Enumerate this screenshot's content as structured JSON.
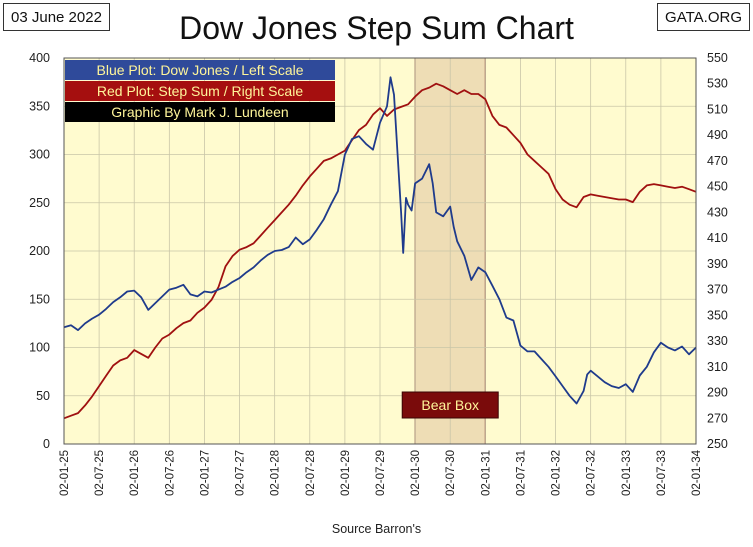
{
  "header": {
    "date": "03 June 2022",
    "source_org": "GATA.ORG"
  },
  "colors": {
    "plot_bg": "#FFFBCF",
    "blue": "#1F3B8C",
    "red": "#A01010",
    "bear_box_fill": "#EEDDB5",
    "bear_box_label_bg": "#7A0B0B",
    "legend_blue_bg": "#2F4A9A",
    "legend_red_bg": "#A50F0F",
    "legend_black_bg": "#000000",
    "legend_text": "#FFF59A"
  },
  "chart_data": {
    "type": "line",
    "title": "Dow Jones Step Sum Chart",
    "xlabel": "Source Barron's",
    "ylabel_left": "",
    "ylabel_right": "",
    "ylim_left": [
      0,
      400
    ],
    "ylim_right": [
      250,
      550
    ],
    "yticks_left": [
      "0",
      "50",
      "100",
      "150",
      "200",
      "250",
      "300",
      "350",
      "400"
    ],
    "yticks_right": [
      "250",
      "270",
      "290",
      "310",
      "330",
      "350",
      "370",
      "390",
      "410",
      "430",
      "450",
      "470",
      "490",
      "510",
      "530",
      "550"
    ],
    "x_tick_labels": [
      "02-01-25",
      "02-07-25",
      "02-01-26",
      "02-07-26",
      "02-01-27",
      "02-07-27",
      "02-01-28",
      "02-07-28",
      "02-01-29",
      "02-07-29",
      "02-01-30",
      "02-07-30",
      "02-01-31",
      "02-07-31",
      "02-01-32",
      "02-07-32",
      "02-01-33",
      "02-07-33",
      "02-01-34"
    ],
    "x_range_years": [
      1925.0,
      1934.0
    ],
    "legend": [
      {
        "text": "Blue Plot: Dow Jones / Left Scale",
        "color": "blue"
      },
      {
        "text": "Red Plot: Step Sum / Right Scale",
        "color": "red"
      },
      {
        "text": "Graphic By Mark J. Lundeen",
        "color": "black"
      }
    ],
    "legend_position": "top-left",
    "bear_box": {
      "label": "Bear Box",
      "x_start": 1930.0,
      "x_end": 1931.0
    },
    "series": [
      {
        "name": "Dow Jones",
        "axis": "left",
        "color": "blue",
        "x": [
          1925.0,
          1925.1,
          1925.2,
          1925.3,
          1925.4,
          1925.5,
          1925.6,
          1925.7,
          1925.8,
          1925.9,
          1926.0,
          1926.1,
          1926.2,
          1926.3,
          1926.4,
          1926.5,
          1926.6,
          1926.7,
          1926.8,
          1926.9,
          1927.0,
          1927.1,
          1927.2,
          1927.3,
          1927.4,
          1927.5,
          1927.6,
          1927.7,
          1927.8,
          1927.9,
          1928.0,
          1928.1,
          1928.2,
          1928.3,
          1928.4,
          1928.5,
          1928.6,
          1928.7,
          1928.8,
          1928.9,
          1929.0,
          1929.1,
          1929.2,
          1929.3,
          1929.4,
          1929.5,
          1929.6,
          1929.65,
          1929.7,
          1929.75,
          1929.8,
          1929.83,
          1929.87,
          1929.9,
          1929.95,
          1930.0,
          1930.1,
          1930.2,
          1930.25,
          1930.3,
          1930.4,
          1930.5,
          1930.55,
          1930.6,
          1930.7,
          1930.8,
          1930.9,
          1931.0,
          1931.1,
          1931.2,
          1931.3,
          1931.4,
          1931.5,
          1931.6,
          1931.7,
          1931.8,
          1931.9,
          1932.0,
          1932.1,
          1932.2,
          1932.3,
          1932.4,
          1932.45,
          1932.5,
          1932.6,
          1932.7,
          1932.8,
          1932.9,
          1933.0,
          1933.1,
          1933.2,
          1933.3,
          1933.4,
          1933.5,
          1933.6,
          1933.7,
          1933.8,
          1933.9,
          1934.0
        ],
        "values": [
          121,
          123,
          118,
          125,
          130,
          134,
          140,
          147,
          152,
          158,
          159,
          152,
          139,
          146,
          153,
          160,
          162,
          165,
          155,
          153,
          158,
          157,
          160,
          163,
          168,
          172,
          178,
          183,
          190,
          196,
          200,
          201,
          204,
          214,
          207,
          212,
          222,
          233,
          248,
          262,
          300,
          316,
          319,
          311,
          305,
          333,
          350,
          380,
          362,
          300,
          240,
          198,
          255,
          248,
          242,
          270,
          275,
          290,
          270,
          240,
          236,
          246,
          225,
          210,
          195,
          170,
          183,
          178,
          164,
          150,
          131,
          128,
          102,
          96,
          96,
          88,
          80,
          70,
          60,
          50,
          42,
          55,
          72,
          76,
          70,
          64,
          60,
          58,
          62,
          54,
          71,
          80,
          95,
          105,
          100,
          97,
          101,
          93,
          100
        ]
      },
      {
        "name": "Step Sum",
        "axis": "right",
        "color": "red",
        "x": [
          1925.0,
          1925.1,
          1925.2,
          1925.3,
          1925.4,
          1925.5,
          1925.6,
          1925.7,
          1925.8,
          1925.9,
          1926.0,
          1926.1,
          1926.2,
          1926.3,
          1926.4,
          1926.5,
          1926.6,
          1926.7,
          1926.8,
          1926.9,
          1927.0,
          1927.1,
          1927.2,
          1927.3,
          1927.4,
          1927.5,
          1927.6,
          1927.7,
          1927.8,
          1927.9,
          1928.0,
          1928.1,
          1928.2,
          1928.3,
          1928.4,
          1928.5,
          1928.6,
          1928.7,
          1928.8,
          1928.9,
          1929.0,
          1929.1,
          1929.2,
          1929.3,
          1929.4,
          1929.5,
          1929.6,
          1929.7,
          1929.8,
          1929.9,
          1930.0,
          1930.1,
          1930.2,
          1930.3,
          1930.4,
          1930.5,
          1930.6,
          1930.7,
          1930.8,
          1930.9,
          1931.0,
          1931.1,
          1931.2,
          1931.3,
          1931.4,
          1931.5,
          1931.6,
          1931.7,
          1931.8,
          1931.9,
          1932.0,
          1932.1,
          1932.2,
          1932.3,
          1932.4,
          1932.5,
          1932.6,
          1932.7,
          1932.8,
          1932.9,
          1933.0,
          1933.1,
          1933.2,
          1933.3,
          1933.4,
          1933.5,
          1933.6,
          1933.7,
          1933.8,
          1933.9,
          1934.0
        ],
        "values": [
          270,
          272,
          274,
          280,
          287,
          295,
          303,
          311,
          315,
          317,
          323,
          320,
          317,
          325,
          332,
          335,
          340,
          344,
          346,
          352,
          356,
          362,
          372,
          388,
          396,
          401,
          403,
          406,
          412,
          418,
          424,
          430,
          436,
          443,
          451,
          458,
          464,
          470,
          472,
          475,
          478,
          486,
          494,
          498,
          506,
          511,
          505,
          510,
          512,
          514,
          520,
          525,
          527,
          530,
          528,
          525,
          522,
          525,
          522,
          522,
          518,
          505,
          498,
          496,
          490,
          484,
          475,
          470,
          465,
          460,
          448,
          440,
          436,
          434,
          442,
          444,
          443,
          442,
          441,
          440,
          440,
          438,
          446,
          451,
          452,
          451,
          450,
          449,
          450,
          448,
          446
        ]
      }
    ]
  }
}
